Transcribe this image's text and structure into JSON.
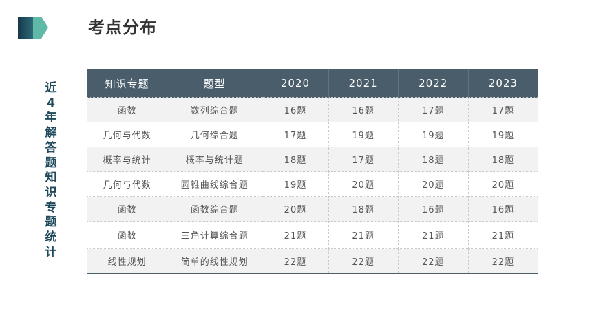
{
  "slide": {
    "title": "考点分布",
    "side_title": [
      "近",
      "4",
      "年",
      "解",
      "答",
      "题",
      "知",
      "识",
      "专",
      "题",
      "统",
      "计"
    ]
  },
  "table": {
    "headers": [
      "知识专题",
      "题型",
      "2020",
      "2021",
      "2022",
      "2023"
    ],
    "rows": [
      [
        "函数",
        "数列综合题",
        "16题",
        "16题",
        "17题",
        "17题"
      ],
      [
        "几何与代数",
        "几何综合题",
        "17题",
        "19题",
        "19题",
        "19题"
      ],
      [
        "概率与统计",
        "概率与统计题",
        "18题",
        "17题",
        "18题",
        "18题"
      ],
      [
        "几何与代数",
        "圆锥曲线综合题",
        "19题",
        "20题",
        "20题",
        "20题"
      ],
      [
        "函数",
        "函数综合题",
        "20题",
        "18题",
        "16题",
        "16题"
      ],
      [
        "函数",
        "三角计算综合题",
        "21题",
        "21题",
        "21题",
        "21题"
      ],
      [
        "线性规划",
        "简单的线性规划",
        "22题",
        "22题",
        "22题",
        "22题"
      ]
    ]
  },
  "colors": {
    "header_bg": "#4a5d6a",
    "accent_dark": "#1f4a5c",
    "accent_teal": "#5fb8a8",
    "stripe": "#f2f2f2"
  }
}
